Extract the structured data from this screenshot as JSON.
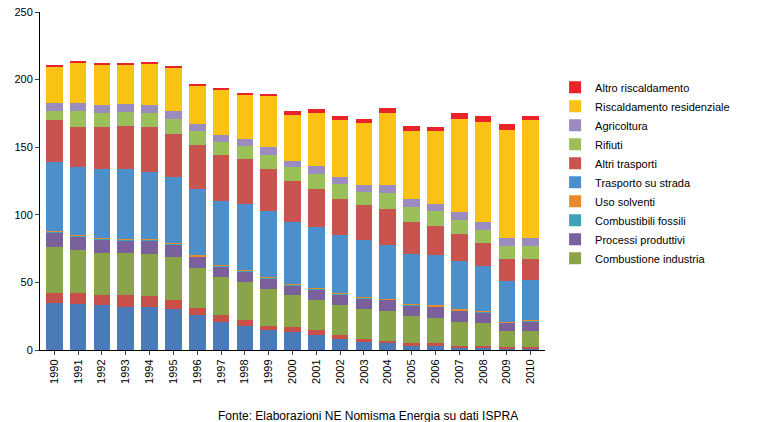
{
  "chart_data": {
    "type": "bar",
    "stacked": true,
    "grid": false,
    "legend": "right",
    "annotations": [
      "Fonte: Elaborazioni NE Nomisma Energia su dati ISPRA"
    ],
    "categories": [
      "1990",
      "1991",
      "1992",
      "1993",
      "1994",
      "1995",
      "1996",
      "1997",
      "1998",
      "1999",
      "2000",
      "2001",
      "2002",
      "2003",
      "2004",
      "2005",
      "2006",
      "2007",
      "2008",
      "2009",
      "2010"
    ],
    "ylim": [
      0,
      250
    ],
    "yticks": [
      0,
      50,
      100,
      150,
      200,
      250
    ],
    "series": [
      {
        "color": "#4a7ab8",
        "values": [
          35,
          34,
          33,
          32,
          32,
          30,
          26,
          21,
          18,
          15,
          13,
          11,
          8,
          6,
          5,
          3,
          3,
          2,
          2,
          1,
          1
        ]
      },
      {
        "color": "#c8504b",
        "values": [
          7,
          8,
          8,
          9,
          8,
          7,
          5,
          5,
          4,
          3,
          4,
          4,
          3,
          2,
          2,
          2,
          2,
          1,
          1,
          1,
          1
        ]
      },
      {
        "name": "Combustione industria",
        "color": "#8aa44a",
        "values": [
          34,
          32,
          31,
          31,
          31,
          32,
          30,
          28,
          28,
          27,
          24,
          22,
          22,
          22,
          22,
          20,
          19,
          18,
          17,
          12,
          12
        ]
      },
      {
        "name": "Processi produttivi",
        "color": "#7b619c",
        "values": [
          11,
          10,
          10,
          9,
          10,
          9,
          8,
          8,
          8,
          8,
          7,
          8,
          8,
          8,
          8,
          8,
          8,
          8,
          8,
          6,
          7
        ]
      },
      {
        "name": "Combustibili fossili",
        "color": "#3fa3b5",
        "values": [
          0.5,
          0.5,
          0.5,
          0.5,
          0.5,
          0.5,
          0.5,
          0.5,
          0.5,
          0.5,
          0.5,
          0.5,
          0.5,
          0.5,
          0.5,
          0.5,
          0.5,
          0.5,
          0.5,
          0.5,
          0.5
        ]
      },
      {
        "name": "Uso solventi",
        "color": "#e8892d",
        "values": [
          0.5,
          0.5,
          0.5,
          0.5,
          0.5,
          0.5,
          0.5,
          0.5,
          0.5,
          0.5,
          0.5,
          0.5,
          0.5,
          0.5,
          0.5,
          0.5,
          0.5,
          0.5,
          0.5,
          0.5,
          0.5
        ]
      },
      {
        "name": "Trasporto su strada",
        "color": "#4c8fcb",
        "values": [
          51,
          50,
          51,
          52,
          50,
          49,
          49,
          47,
          49,
          49,
          46,
          45,
          43,
          42,
          40,
          37,
          37,
          36,
          33,
          30,
          30
        ]
      },
      {
        "name": "Altri trasporti",
        "color": "#c9534f",
        "values": [
          31,
          30,
          31,
          32,
          33,
          32,
          33,
          34,
          33,
          31,
          30,
          28,
          27,
          26,
          26,
          24,
          22,
          20,
          17,
          16,
          15
        ]
      },
      {
        "name": "Rifiuti",
        "color": "#9bc05a",
        "values": [
          7,
          12,
          10,
          10,
          10,
          11,
          10,
          10,
          10,
          10,
          10,
          11,
          11,
          10,
          12,
          11,
          11,
          10,
          10,
          10,
          10
        ]
      },
      {
        "name": "Agricoltura",
        "color": "#9b8cbf",
        "values": [
          6,
          6,
          6,
          6,
          6,
          6,
          5,
          5,
          5,
          6,
          5,
          6,
          5,
          5,
          6,
          6,
          5,
          6,
          6,
          6,
          6
        ]
      },
      {
        "name": "Riscaldamento residenziale",
        "color": "#f9c215",
        "values": [
          26,
          29,
          30,
          29,
          31,
          32,
          29,
          34,
          33,
          38,
          34,
          39,
          42,
          46,
          53,
          50,
          54,
          69,
          74,
          80,
          87
        ]
      },
      {
        "name": "Altro riscaldamento",
        "color": "#e8242a",
        "values": [
          2,
          1.5,
          1.5,
          1,
          1,
          1,
          1,
          1,
          1,
          1,
          3,
          3,
          3,
          3,
          4,
          4,
          3,
          4,
          4,
          4,
          3
        ]
      }
    ]
  }
}
